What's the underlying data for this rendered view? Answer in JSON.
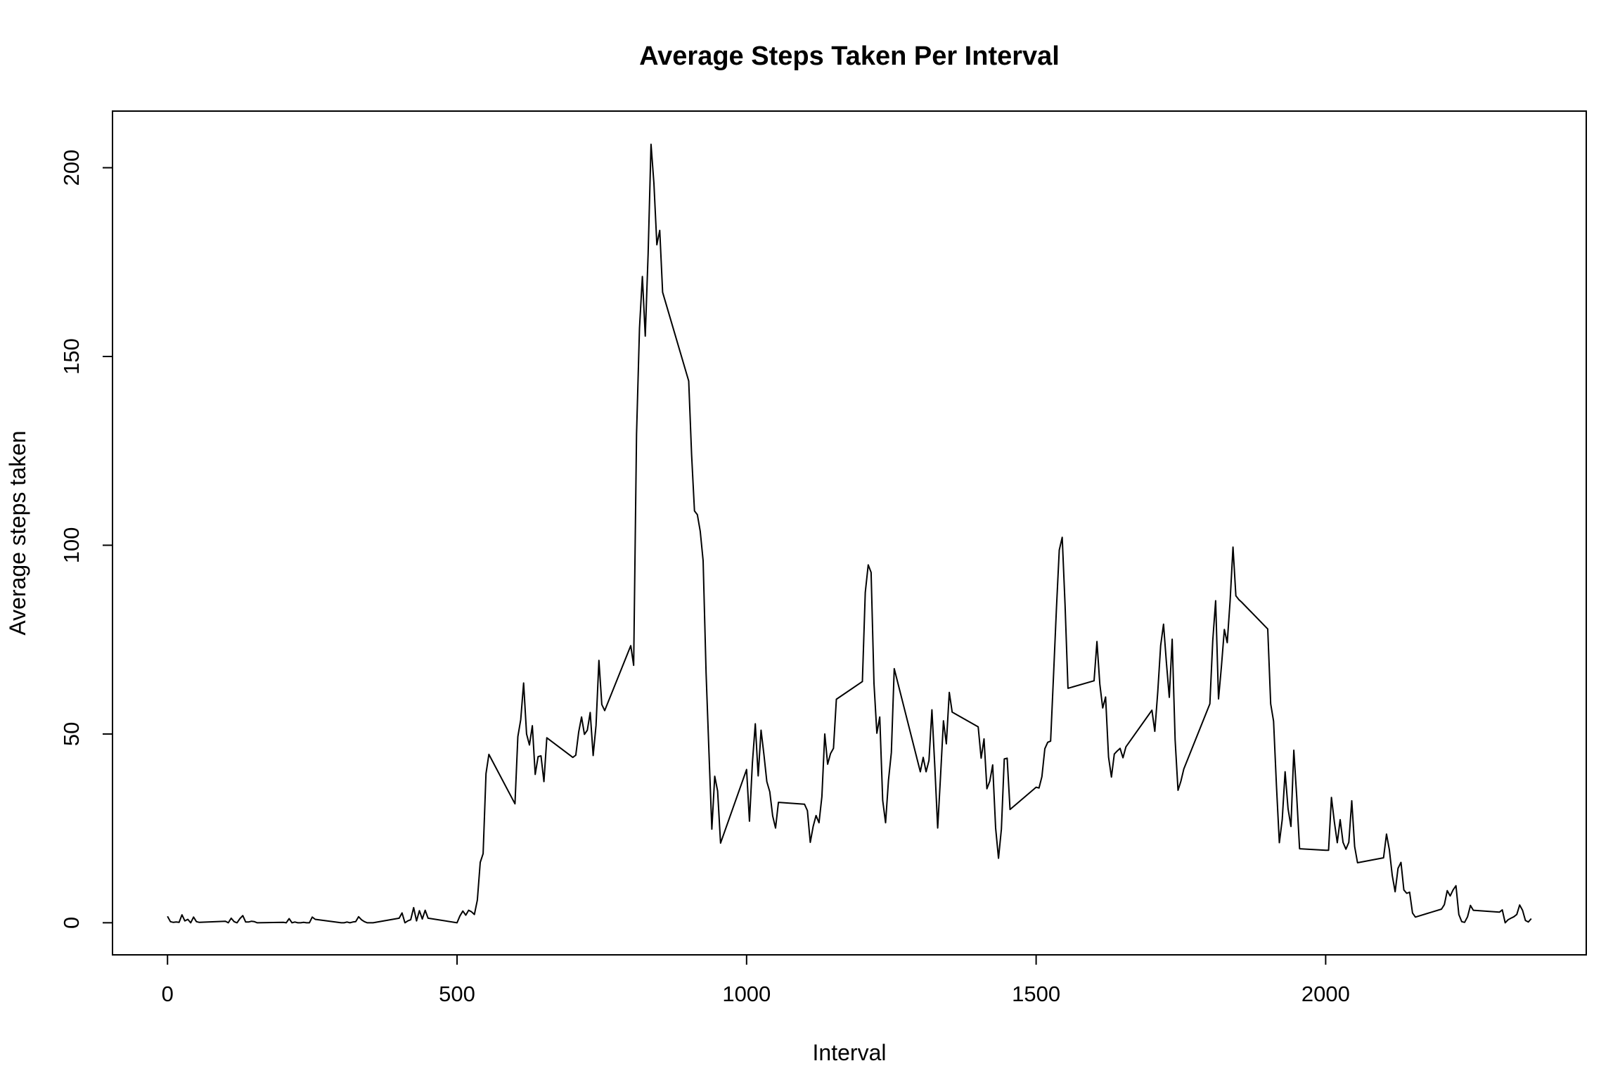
{
  "chart_data": {
    "type": "line",
    "title": "Average Steps Taken Per Interval",
    "xlabel": "Interval",
    "ylabel": "Average steps taken",
    "xlim": [
      -95,
      2450
    ],
    "ylim": [
      -8.5,
      215
    ],
    "xticks": [
      0,
      500,
      1000,
      1500,
      2000
    ],
    "yticks": [
      0,
      50,
      100,
      150,
      200
    ],
    "grid": false,
    "line_color": "#000000",
    "series": [
      {
        "x": [
          0,
          5,
          10,
          15,
          20,
          25,
          30,
          35,
          40,
          45,
          50,
          55,
          100,
          105,
          110,
          115,
          120,
          125,
          130,
          135,
          140,
          145,
          150,
          155,
          200,
          205,
          210,
          215,
          220,
          225,
          230,
          235,
          240,
          245,
          250,
          255,
          300,
          305,
          310,
          315,
          320,
          325,
          330,
          335,
          340,
          345,
          350,
          355,
          400,
          405,
          410,
          415,
          420,
          425,
          430,
          435,
          440,
          445,
          450,
          455,
          500,
          505,
          510,
          515,
          520,
          525,
          530,
          535,
          540,
          545,
          550,
          555,
          600,
          605,
          610,
          615,
          620,
          625,
          630,
          635,
          640,
          645,
          650,
          655,
          700,
          705,
          710,
          715,
          720,
          725,
          730,
          735,
          740,
          745,
          750,
          755,
          800,
          805,
          810,
          815,
          820,
          825,
          830,
          835,
          840,
          845,
          850,
          855,
          900,
          905,
          910,
          915,
          920,
          925,
          930,
          935,
          940,
          945,
          950,
          955,
          1000,
          1005,
          1010,
          1015,
          1020,
          1025,
          1030,
          1035,
          1040,
          1045,
          1050,
          1055,
          1100,
          1105,
          1110,
          1115,
          1120,
          1125,
          1130,
          1135,
          1140,
          1145,
          1150,
          1155,
          1200,
          1205,
          1210,
          1215,
          1220,
          1225,
          1230,
          1235,
          1240,
          1245,
          1250,
          1255,
          1300,
          1305,
          1310,
          1315,
          1320,
          1325,
          1330,
          1335,
          1340,
          1345,
          1350,
          1355,
          1400,
          1405,
          1410,
          1415,
          1420,
          1425,
          1430,
          1435,
          1440,
          1445,
          1450,
          1455,
          1500,
          1505,
          1510,
          1515,
          1520,
          1525,
          1530,
          1535,
          1540,
          1545,
          1550,
          1555,
          1600,
          1605,
          1610,
          1615,
          1620,
          1625,
          1630,
          1635,
          1640,
          1645,
          1650,
          1655,
          1700,
          1705,
          1710,
          1715,
          1720,
          1725,
          1730,
          1735,
          1740,
          1745,
          1750,
          1755,
          1800,
          1805,
          1810,
          1815,
          1820,
          1825,
          1830,
          1835,
          1840,
          1845,
          1850,
          1855,
          1900,
          1905,
          1910,
          1915,
          1920,
          1925,
          1930,
          1935,
          1940,
          1945,
          1950,
          1955,
          2000,
          2005,
          2010,
          2015,
          2020,
          2025,
          2030,
          2035,
          2040,
          2045,
          2050,
          2055,
          2100,
          2105,
          2110,
          2115,
          2120,
          2125,
          2130,
          2135,
          2140,
          2145,
          2150,
          2155,
          2200,
          2205,
          2210,
          2215,
          2220,
          2225,
          2230,
          2235,
          2240,
          2245,
          2250,
          2255,
          2300,
          2305,
          2310,
          2315,
          2320,
          2325,
          2330,
          2335,
          2340,
          2345,
          2350,
          2355
        ],
        "values": [
          1.7,
          0.3,
          0.1,
          0.2,
          0.1,
          2.1,
          0.5,
          0.9,
          0.0,
          1.5,
          0.3,
          0.1,
          0.4,
          0.0,
          1.2,
          0.3,
          0.0,
          1.1,
          1.9,
          0.2,
          0.2,
          0.4,
          0.3,
          0.0,
          0.1,
          0.0,
          1.1,
          0.0,
          0.2,
          0.0,
          0.0,
          0.1,
          0.0,
          0.0,
          1.5,
          0.9,
          0.0,
          0.0,
          0.2,
          0.0,
          0.2,
          0.3,
          1.6,
          0.8,
          0.3,
          0.0,
          0.0,
          0.0,
          1.2,
          2.6,
          0.0,
          0.5,
          0.8,
          4.0,
          0.5,
          3.2,
          1.0,
          3.3,
          1.2,
          1.1,
          0.0,
          1.8,
          3.1,
          2.0,
          3.3,
          2.9,
          2.2,
          6.0,
          16.0,
          18.3,
          39.5,
          44.6,
          31.5,
          49.3,
          53.8,
          63.5,
          50.0,
          47.1,
          52.2,
          39.3,
          44.0,
          44.2,
          37.4,
          49.0,
          43.8,
          44.4,
          50.5,
          54.5,
          49.9,
          51.0,
          55.7,
          44.3,
          52.3,
          69.5,
          57.8,
          56.2,
          73.4,
          68.2,
          129.4,
          157.5,
          171.2,
          155.4,
          177.3,
          206.2,
          195.9,
          179.6,
          183.4,
          167.0,
          143.5,
          124.0,
          109.1,
          108.1,
          103.7,
          95.9,
          66.2,
          45.2,
          24.8,
          38.8,
          34.9,
          21.1,
          40.6,
          26.9,
          42.4,
          52.7,
          38.9,
          51.0,
          44.5,
          37.4,
          34.7,
          28.3,
          25.1,
          31.9,
          31.4,
          29.7,
          21.3,
          25.5,
          28.4,
          26.5,
          33.4,
          50.0,
          42.0,
          44.8,
          46.2,
          59.2,
          63.9,
          87.5,
          94.8,
          92.8,
          63.4,
          50.2,
          54.5,
          32.4,
          26.5,
          37.7,
          45.1,
          67.3,
          40.0,
          43.8,
          40.0,
          43.0,
          56.4,
          41.4,
          25.1,
          39.0,
          53.5,
          47.4,
          61.0,
          55.8,
          51.9,
          43.6,
          48.7,
          35.5,
          37.5,
          41.8,
          25.1,
          17.1,
          24.8,
          43.4,
          43.6,
          30.0,
          35.9,
          35.7,
          38.7,
          46.1,
          47.8,
          48.1,
          65.3,
          82.9,
          98.7,
          102.1,
          84.0,
          62.1,
          64.1,
          74.5,
          63.2,
          56.9,
          59.8,
          43.9,
          38.6,
          44.7,
          45.5,
          46.2,
          43.7,
          46.6,
          56.3,
          50.7,
          61.2,
          73.4,
          79.1,
          68.9,
          59.7,
          75.1,
          48.4,
          35.1,
          37.5,
          40.7,
          58.0,
          74.7,
          85.3,
          59.3,
          67.8,
          77.7,
          74.2,
          85.3,
          99.5,
          86.6,
          85.6,
          84.9,
          77.8,
          58.0,
          53.4,
          36.3,
          21.2,
          27.3,
          40.0,
          30.2,
          25.5,
          45.7,
          33.5,
          19.6,
          19.2,
          19.2,
          33.2,
          26.8,
          21.2,
          27.3,
          21.3,
          19.5,
          21.3,
          32.3,
          20.2,
          15.9,
          17.2,
          23.5,
          19.3,
          12.5,
          8.2,
          14.4,
          16.0,
          8.7,
          7.8,
          8.1,
          2.6,
          1.5,
          3.6,
          4.8,
          8.5,
          7.1,
          8.7,
          9.8,
          2.2,
          0.3,
          0.1,
          1.6,
          4.6,
          3.3,
          2.8,
          3.4,
          0.0,
          0.8,
          1.2,
          1.6,
          2.2,
          4.7,
          3.3,
          0.6,
          0.2,
          1.1
        ]
      }
    ]
  }
}
